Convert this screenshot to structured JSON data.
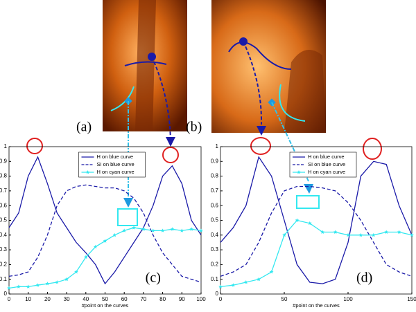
{
  "images": [
    {
      "label": "(a)"
    },
    {
      "label": "(b)"
    }
  ],
  "chart_data": [
    {
      "type": "line",
      "annotation": "(c)",
      "xlabel": "#point on the curves",
      "legend": "upper center",
      "xlim": [
        0,
        100
      ],
      "xticks": [
        0,
        10,
        20,
        30,
        40,
        50,
        60,
        70,
        80,
        90,
        100
      ],
      "ylim": [
        0,
        1
      ],
      "yticks": [
        0,
        0.1,
        0.2,
        0.3,
        0.4,
        0.5,
        0.6,
        0.7,
        0.8,
        0.9,
        1
      ],
      "x": [
        0,
        5,
        10,
        15,
        20,
        25,
        30,
        35,
        40,
        45,
        50,
        55,
        60,
        65,
        70,
        75,
        80,
        85,
        90,
        95,
        100
      ],
      "series": [
        {
          "name": "H on blue curve",
          "color": "#1a1aa8",
          "linestyle": "solid",
          "values": [
            0.45,
            0.55,
            0.8,
            0.93,
            0.75,
            0.55,
            0.45,
            0.35,
            0.28,
            0.2,
            0.07,
            0.15,
            0.25,
            0.35,
            0.45,
            0.6,
            0.8,
            0.87,
            0.75,
            0.5,
            0.4
          ]
        },
        {
          "name": "SI on blue curve",
          "color": "#1a1aa8",
          "linestyle": "dashed",
          "values": [
            0.12,
            0.13,
            0.15,
            0.25,
            0.4,
            0.6,
            0.7,
            0.73,
            0.74,
            0.73,
            0.72,
            0.72,
            0.7,
            0.65,
            0.55,
            0.4,
            0.28,
            0.2,
            0.12,
            0.1,
            0.08
          ]
        },
        {
          "name": "H on cyan curve",
          "color": "#33e8f0",
          "linestyle": "solid",
          "marker": "star",
          "values": [
            0.04,
            0.05,
            0.05,
            0.06,
            0.07,
            0.08,
            0.1,
            0.15,
            0.25,
            0.32,
            0.36,
            0.4,
            0.43,
            0.45,
            0.44,
            0.43,
            0.43,
            0.44,
            0.43,
            0.44,
            0.43
          ]
        }
      ]
    },
    {
      "type": "line",
      "annotation": "(d)",
      "xlabel": "#point on the curves",
      "legend": "upper center",
      "xlim": [
        0,
        150
      ],
      "xticks": [
        0,
        50,
        100,
        150
      ],
      "ylim": [
        0,
        1
      ],
      "yticks": [
        0,
        0.1,
        0.2,
        0.3,
        0.4,
        0.5,
        0.6,
        0.7,
        0.8,
        0.9,
        1
      ],
      "x": [
        0,
        10,
        20,
        30,
        40,
        50,
        60,
        70,
        80,
        90,
        100,
        110,
        120,
        130,
        140,
        150
      ],
      "series": [
        {
          "name": "H on blue curve",
          "color": "#1a1aa8",
          "linestyle": "solid",
          "values": [
            0.35,
            0.45,
            0.6,
            0.93,
            0.8,
            0.5,
            0.2,
            0.08,
            0.07,
            0.1,
            0.35,
            0.8,
            0.9,
            0.88,
            0.6,
            0.4
          ]
        },
        {
          "name": "SI on blue curve",
          "color": "#1a1aa8",
          "linestyle": "dashed",
          "values": [
            0.12,
            0.15,
            0.2,
            0.35,
            0.55,
            0.7,
            0.73,
            0.73,
            0.72,
            0.7,
            0.62,
            0.5,
            0.35,
            0.2,
            0.15,
            0.12
          ]
        },
        {
          "name": "H on cyan curve",
          "color": "#33e8f0",
          "linestyle": "solid",
          "marker": "star",
          "values": [
            0.05,
            0.06,
            0.08,
            0.1,
            0.15,
            0.4,
            0.5,
            0.48,
            0.42,
            0.42,
            0.4,
            0.4,
            0.4,
            0.42,
            0.42,
            0.4
          ]
        }
      ]
    }
  ]
}
